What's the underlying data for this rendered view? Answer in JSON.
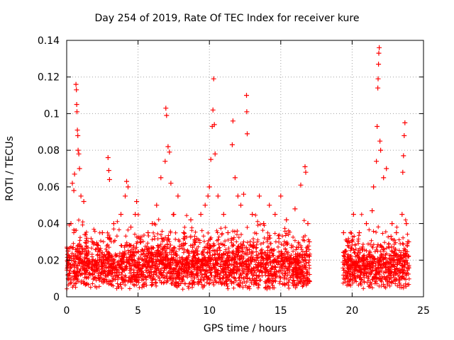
{
  "chart_data": {
    "type": "scatter",
    "title": "Day 254 of 2019, Rate Of TEC Index for receiver kure",
    "xlabel": "GPS time / hours",
    "ylabel": "ROTI / TECUs",
    "xlim": [
      0,
      25
    ],
    "ylim": [
      0,
      0.14
    ],
    "xticks": [
      0,
      5,
      10,
      15,
      20,
      25
    ],
    "yticks": [
      0,
      0.02,
      0.04,
      0.06,
      0.08,
      0.1,
      0.12,
      0.14
    ],
    "xtick_labels": [
      "0",
      "5",
      "10",
      "15",
      "20",
      "25"
    ],
    "ytick_labels": [
      "0",
      "0.02",
      "0.04",
      "0.06",
      "0.08",
      "0.1",
      "0.12",
      "0.14"
    ],
    "grid": true,
    "marker": "+",
    "color": "#ff0000",
    "data_gap_hours": [
      17.05,
      19.35
    ],
    "series": [
      {
        "name": "ROTI",
        "points": [
          [
            0.1,
            0.025
          ],
          [
            0.3,
            0.04
          ],
          [
            0.4,
            0.062
          ],
          [
            0.5,
            0.058
          ],
          [
            0.55,
            0.067
          ],
          [
            0.65,
            0.116
          ],
          [
            0.68,
            0.113
          ],
          [
            0.7,
            0.105
          ],
          [
            0.72,
            0.101
          ],
          [
            0.75,
            0.091
          ],
          [
            0.78,
            0.088
          ],
          [
            0.8,
            0.08
          ],
          [
            0.85,
            0.078
          ],
          [
            0.9,
            0.07
          ],
          [
            1.0,
            0.055
          ],
          [
            1.2,
            0.052
          ],
          [
            1.4,
            0.032
          ],
          [
            1.8,
            0.03
          ],
          [
            2.2,
            0.028
          ],
          [
            2.5,
            0.035
          ],
          [
            2.9,
            0.076
          ],
          [
            2.95,
            0.069
          ],
          [
            3.0,
            0.064
          ],
          [
            3.3,
            0.04
          ],
          [
            3.8,
            0.045
          ],
          [
            4.1,
            0.055
          ],
          [
            4.2,
            0.063
          ],
          [
            4.3,
            0.06
          ],
          [
            4.5,
            0.038
          ],
          [
            4.8,
            0.045
          ],
          [
            4.9,
            0.052
          ],
          [
            5.2,
            0.03
          ],
          [
            5.7,
            0.035
          ],
          [
            6.0,
            0.04
          ],
          [
            6.3,
            0.05
          ],
          [
            6.6,
            0.065
          ],
          [
            6.9,
            0.074
          ],
          [
            6.95,
            0.103
          ],
          [
            7.0,
            0.099
          ],
          [
            7.1,
            0.082
          ],
          [
            7.2,
            0.079
          ],
          [
            7.3,
            0.062
          ],
          [
            7.5,
            0.045
          ],
          [
            7.8,
            0.055
          ],
          [
            8.2,
            0.035
          ],
          [
            8.7,
            0.042
          ],
          [
            9.0,
            0.03
          ],
          [
            9.4,
            0.045
          ],
          [
            9.7,
            0.05
          ],
          [
            9.9,
            0.055
          ],
          [
            10.0,
            0.06
          ],
          [
            10.1,
            0.075
          ],
          [
            10.2,
            0.093
          ],
          [
            10.25,
            0.102
          ],
          [
            10.3,
            0.119
          ],
          [
            10.35,
            0.094
          ],
          [
            10.4,
            0.078
          ],
          [
            10.6,
            0.055
          ],
          [
            11.0,
            0.045
          ],
          [
            11.3,
            0.035
          ],
          [
            11.6,
            0.083
          ],
          [
            11.65,
            0.096
          ],
          [
            11.8,
            0.065
          ],
          [
            12.0,
            0.055
          ],
          [
            12.2,
            0.05
          ],
          [
            12.4,
            0.056
          ],
          [
            12.6,
            0.11
          ],
          [
            12.62,
            0.101
          ],
          [
            12.65,
            0.089
          ],
          [
            13.0,
            0.045
          ],
          [
            13.5,
            0.055
          ],
          [
            13.8,
            0.04
          ],
          [
            14.2,
            0.05
          ],
          [
            14.6,
            0.045
          ],
          [
            15.0,
            0.055
          ],
          [
            15.4,
            0.042
          ],
          [
            16.0,
            0.048
          ],
          [
            16.4,
            0.061
          ],
          [
            16.7,
            0.071
          ],
          [
            16.75,
            0.068
          ],
          [
            16.9,
            0.04
          ],
          [
            17.0,
            0.03
          ],
          [
            19.4,
            0.035
          ],
          [
            19.7,
            0.028
          ],
          [
            20.0,
            0.03
          ],
          [
            20.1,
            0.045
          ],
          [
            20.5,
            0.035
          ],
          [
            21.0,
            0.04
          ],
          [
            21.4,
            0.047
          ],
          [
            21.5,
            0.06
          ],
          [
            21.7,
            0.074
          ],
          [
            21.75,
            0.093
          ],
          [
            21.8,
            0.114
          ],
          [
            21.82,
            0.119
          ],
          [
            21.85,
            0.127
          ],
          [
            21.87,
            0.133
          ],
          [
            21.9,
            0.136
          ],
          [
            21.95,
            0.085
          ],
          [
            22.0,
            0.08
          ],
          [
            22.2,
            0.065
          ],
          [
            22.4,
            0.07
          ],
          [
            22.8,
            0.04
          ],
          [
            23.1,
            0.035
          ],
          [
            23.5,
            0.045
          ],
          [
            23.55,
            0.068
          ],
          [
            23.6,
            0.077
          ],
          [
            23.65,
            0.088
          ],
          [
            23.7,
            0.095
          ],
          [
            23.8,
            0.04
          ],
          [
            23.9,
            0.03
          ]
        ]
      }
    ]
  }
}
